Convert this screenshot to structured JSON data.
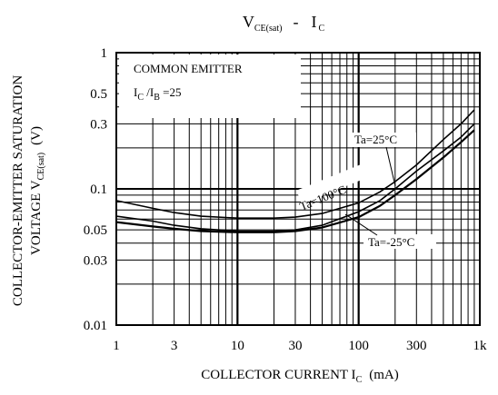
{
  "chart_data": {
    "type": "line",
    "title": {
      "main": "V",
      "main_sub": "CE(sat)",
      "sep": "-",
      "rhs": "I",
      "rhs_sub": "C"
    },
    "xlabel": {
      "prefix": "COLLECTOR CURRENT I",
      "sub": "C",
      "suffix": "(mA)"
    },
    "ylabel": {
      "line1": "COLLECTOR-EMITTER SATURATION",
      "line2_prefix": "VOLTAGE V",
      "line2_sub": "CE(sat)",
      "line2_suffix": "(V)"
    },
    "x_scale": "log",
    "y_scale": "log",
    "xlim": [
      1,
      1000
    ],
    "ylim": [
      0.01,
      1
    ],
    "x_ticks": [
      {
        "value": 1,
        "label": "1"
      },
      {
        "value": 3,
        "label": "3"
      },
      {
        "value": 10,
        "label": "10"
      },
      {
        "value": 30,
        "label": "30"
      },
      {
        "value": 100,
        "label": "100"
      },
      {
        "value": 300,
        "label": "300"
      },
      {
        "value": 1000,
        "label": "1k"
      }
    ],
    "y_ticks": [
      {
        "value": 1,
        "label": "1"
      },
      {
        "value": 0.5,
        "label": "0.5"
      },
      {
        "value": 0.3,
        "label": "0.3"
      },
      {
        "value": 0.1,
        "label": "0.1"
      },
      {
        "value": 0.05,
        "label": "0.05"
      },
      {
        "value": 0.03,
        "label": "0.03"
      },
      {
        "value": 0.01,
        "label": "0.01"
      }
    ],
    "grid": true,
    "conditions": {
      "line1": "COMMON EMITTER",
      "line2": {
        "a": "I",
        "a_sub": "C",
        "b": " /I",
        "b_sub": "B",
        "c": " =25"
      }
    },
    "series": [
      {
        "name": "Ta=25°C",
        "points": [
          [
            1,
            0.063
          ],
          [
            2,
            0.058
          ],
          [
            3,
            0.054
          ],
          [
            5,
            0.051
          ],
          [
            10,
            0.049
          ],
          [
            20,
            0.049
          ],
          [
            30,
            0.05
          ],
          [
            50,
            0.054
          ],
          [
            100,
            0.068
          ],
          [
            150,
            0.082
          ],
          [
            200,
            0.1
          ],
          [
            300,
            0.135
          ],
          [
            500,
            0.19
          ],
          [
            700,
            0.24
          ],
          [
            900,
            0.3
          ]
        ]
      },
      {
        "name": "Ta=100°C",
        "points": [
          [
            1,
            0.082
          ],
          [
            2,
            0.072
          ],
          [
            3,
            0.067
          ],
          [
            5,
            0.063
          ],
          [
            10,
            0.061
          ],
          [
            20,
            0.061
          ],
          [
            30,
            0.062
          ],
          [
            50,
            0.066
          ],
          [
            100,
            0.079
          ],
          [
            150,
            0.095
          ],
          [
            200,
            0.113
          ],
          [
            300,
            0.15
          ],
          [
            500,
            0.23
          ],
          [
            700,
            0.3
          ],
          [
            900,
            0.38
          ]
        ]
      },
      {
        "name": "Ta=-25°C",
        "points": [
          [
            1,
            0.057
          ],
          [
            2,
            0.053
          ],
          [
            3,
            0.051
          ],
          [
            5,
            0.049
          ],
          [
            10,
            0.048
          ],
          [
            20,
            0.048
          ],
          [
            30,
            0.049
          ],
          [
            50,
            0.052
          ],
          [
            100,
            0.062
          ],
          [
            150,
            0.075
          ],
          [
            200,
            0.09
          ],
          [
            300,
            0.118
          ],
          [
            500,
            0.17
          ],
          [
            700,
            0.22
          ],
          [
            900,
            0.27
          ]
        ]
      }
    ]
  }
}
